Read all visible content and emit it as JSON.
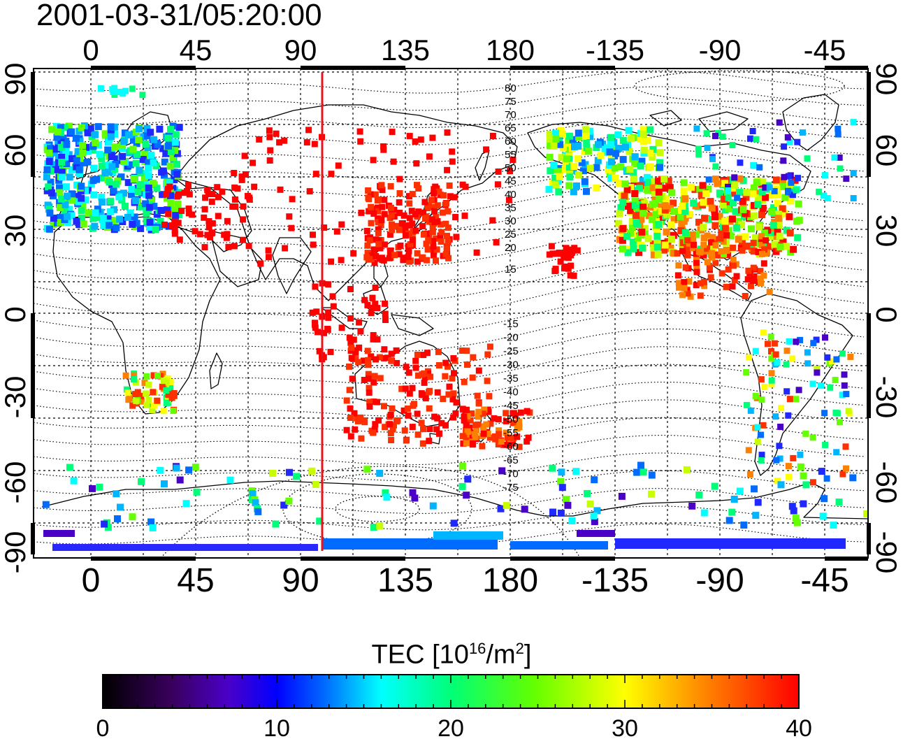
{
  "timestamp": "2001-03-31/05:20:00",
  "map": {
    "lon_ticks": [
      "0",
      "45",
      "90",
      "135",
      "180",
      "-135",
      "-90",
      "-45"
    ],
    "lat_ticks": [
      "90",
      "60",
      "30",
      "0",
      "-30",
      "-60",
      "-90"
    ],
    "marker_meridian_color": "#e8141c",
    "contour_labels_north": [
      "80",
      "75",
      "70",
      "65",
      "60",
      "55",
      "50",
      "45",
      "40",
      "35",
      "30",
      "25",
      "20",
      "15"
    ],
    "contour_labels_south": [
      "-15",
      "-20",
      "-25",
      "-30",
      "-35",
      "-40",
      "-45",
      "-50",
      "-55",
      "-60",
      "-65",
      "-70",
      "-75"
    ]
  },
  "colorbar": {
    "title_text": "TEC  [10",
    "title_sup": "16",
    "title_unit": "/m",
    "title_sup2": "2",
    "title_close": "]",
    "tick_labels": [
      "0",
      "10",
      "20",
      "30",
      "40"
    ],
    "min": 0,
    "max": 40,
    "colors": [
      "#000000",
      "#3a005e",
      "#4b00c8",
      "#0000ff",
      "#006cff",
      "#00ffff",
      "#00ff78",
      "#64ff00",
      "#ffff00",
      "#ff8000",
      "#ff0000"
    ]
  }
}
